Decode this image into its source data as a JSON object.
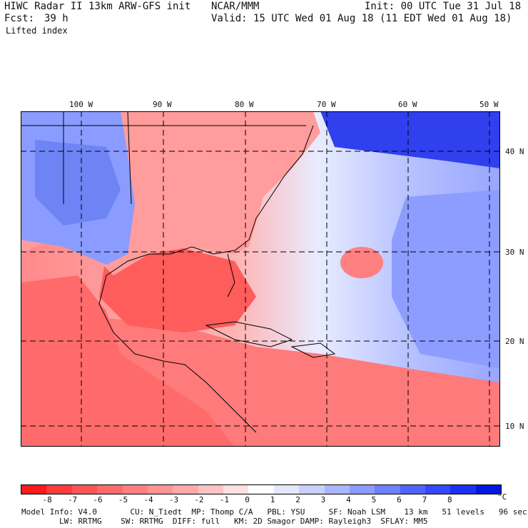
{
  "header": {
    "model_title": "HIWC Radar II 13km ARW-GFS init",
    "org": "NCAR/MMM",
    "init": "Init: 00 UTC Tue 31 Jul 18",
    "fcst_label": "Fcst:",
    "fcst_value": "39 h",
    "valid": "Valid: 15 UTC Wed 01 Aug 18 (11 EDT Wed 01 Aug 18)",
    "field": "Lifted index"
  },
  "map": {
    "lon_labels": [
      "100 W",
      "90 W",
      "80 W",
      "70 W",
      "60 W",
      "50 W"
    ],
    "lat_labels": [
      "40 N",
      "30 N",
      "20 N",
      "10 N"
    ],
    "colors": {
      "land_border": "#000000",
      "grid": "#000000"
    }
  },
  "colorbar": {
    "ticks": [
      "-8",
      "-7",
      "-6",
      "-5",
      "-4",
      "-3",
      "-2",
      "-1",
      "0",
      "1",
      "2",
      "3",
      "4",
      "5",
      "6",
      "7",
      "8"
    ],
    "unit": "°C",
    "colors": [
      "#ff1a1a",
      "#ff3b3b",
      "#ff5555",
      "#ff6a6a",
      "#ff7f7f",
      "#ff9494",
      "#ffa9a9",
      "#ffc3c3",
      "#ffe0e0",
      "#ffffff",
      "#e4e8ff",
      "#c8d0ff",
      "#aab6ff",
      "#8c9bff",
      "#6d80ff",
      "#4f64ff",
      "#3348ff",
      "#1a30f5",
      "#0018e0"
    ]
  },
  "footer": {
    "line1": "Model Info: V4.0       CU: N_Tiedt  MP: Thomp C/A   PBL: YSU     SF: Noah LSM    13 km   51 levels   96 sec",
    "line2": "        LW: RRTMG    SW: RRTMG  DIFF: full   KM: 2D Smagor DAMP: Rayleigh3  SFLAY: MM5"
  }
}
